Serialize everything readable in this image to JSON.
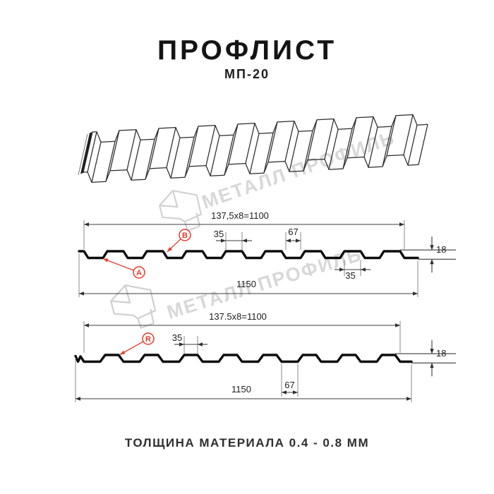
{
  "header": {
    "title": "ПРОФЛИСТ",
    "subtitle": "МП-20"
  },
  "watermark": {
    "brand": "МЕТАЛЛ ПРОФИЛЬ"
  },
  "footer": {
    "note": "ТОЛЩИНА МАТЕРИАЛА 0.4 - 0.8 ММ"
  },
  "colors": {
    "accent": "#e8392c",
    "line": "#0c0c0c",
    "dim": "#3c3c3c",
    "watermark": "#d8d8d8"
  },
  "section_top": {
    "pitch_dim": "137,5x8=1100",
    "crest_top_width_dim": "35",
    "valley_width_dim": "67",
    "height_dim": "18",
    "crest_base_width_dim": "35",
    "overall_width_dim": "1150",
    "label_valley": "А",
    "label_crest": "В"
  },
  "section_bottom": {
    "pitch_dim": "137.5x8=1100",
    "crest_top_width_dim": "35",
    "valley_width_dim": "67",
    "height_dim": "18",
    "overall_width_dim": "1150",
    "label_radius": "R"
  }
}
